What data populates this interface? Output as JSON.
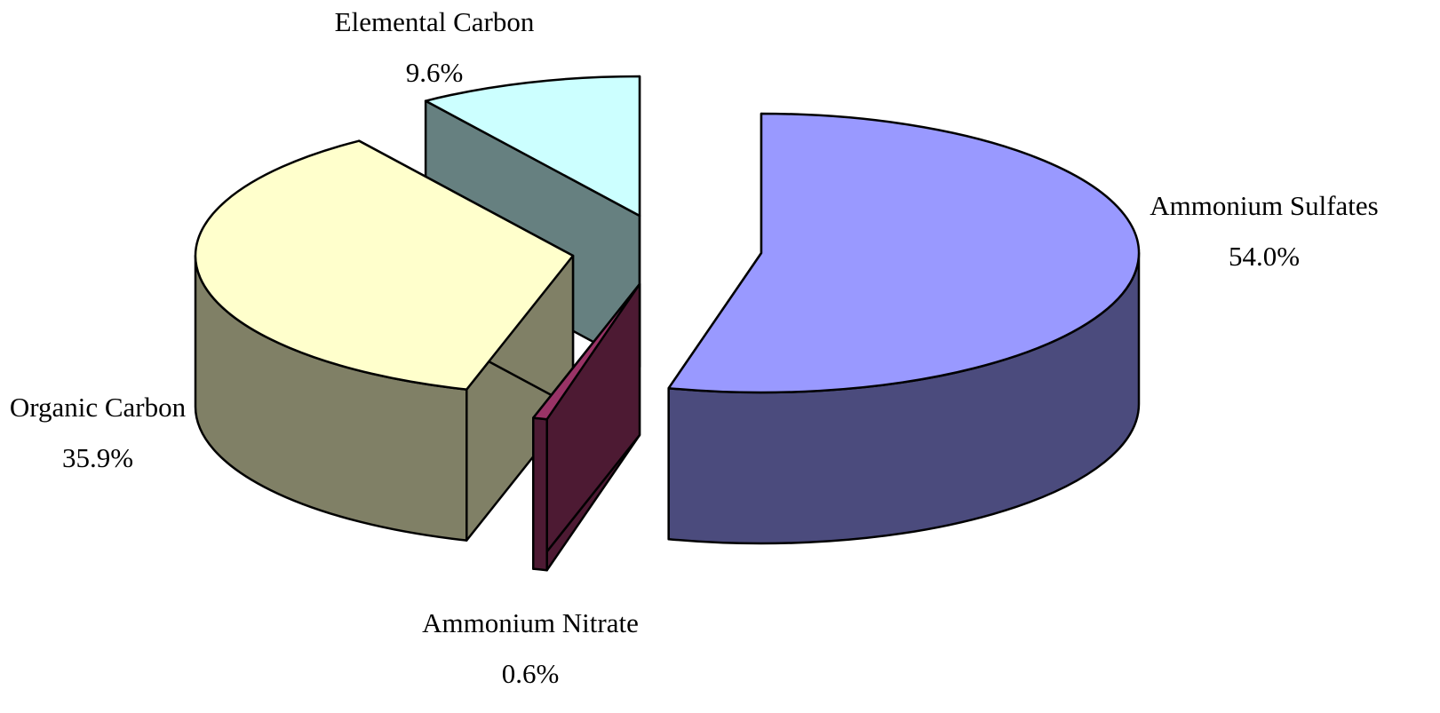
{
  "chart_data": {
    "type": "pie3d",
    "categories": [
      "Ammonium Sulfates",
      "Ammonium Nitrate",
      "Organic Carbon",
      "Elemental Carbon"
    ],
    "values": [
      54.0,
      0.6,
      35.9,
      9.6
    ],
    "value_labels": [
      "54.0%",
      "0.6%",
      "35.9%",
      "9.6%"
    ],
    "colors": [
      "#9999ff",
      "#993366",
      "#ffffcc",
      "#ccffff"
    ],
    "side_colors": [
      "#4b4b7d",
      "#4d1a33",
      "#808066",
      "#668080"
    ]
  }
}
